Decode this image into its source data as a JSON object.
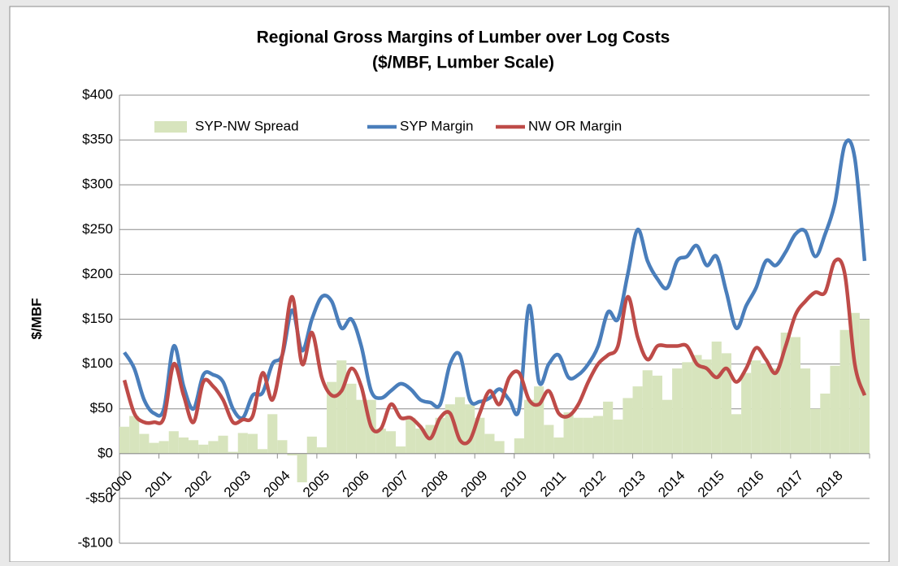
{
  "chart_data": {
    "type": "combo",
    "title": "Regional Gross Margins of Lumber over Log Costs",
    "subtitle": "($/MBF, Lumber Scale)",
    "y_label": "$/MBF",
    "categories": [
      "2000",
      null,
      null,
      null,
      "2001",
      null,
      null,
      null,
      "2002",
      null,
      null,
      null,
      "2003",
      null,
      null,
      null,
      "2004",
      null,
      null,
      null,
      "2005",
      null,
      null,
      null,
      "2006",
      null,
      null,
      null,
      "2007",
      null,
      null,
      null,
      "2008",
      null,
      null,
      null,
      "2009",
      null,
      null,
      null,
      "2010",
      null,
      null,
      null,
      "2011",
      null,
      null,
      null,
      "2012",
      null,
      null,
      null,
      "2013",
      null,
      null,
      null,
      "2014",
      null,
      null,
      null,
      "2015",
      null,
      null,
      null,
      "2016",
      null,
      null,
      null,
      "2017",
      null,
      null,
      null,
      "2018",
      null,
      null,
      null
    ],
    "series": [
      {
        "name": "SYP-NW Spread",
        "kind": "bar",
        "color": "#d7e4bd",
        "values": [
          30,
          42,
          22,
          12,
          14,
          25,
          18,
          15,
          10,
          14,
          20,
          2,
          23,
          22,
          5,
          44,
          15,
          -2,
          -32,
          19,
          7,
          80,
          104,
          78,
          60,
          60,
          28,
          25,
          8,
          40,
          28,
          32,
          40,
          55,
          63,
          55,
          40,
          22,
          14,
          0,
          17,
          60,
          75,
          32,
          18,
          46,
          40,
          40,
          42,
          58,
          38,
          62,
          75,
          93,
          87,
          60,
          95,
          102,
          110,
          105,
          125,
          112,
          44,
          90,
          104,
          100,
          95,
          135,
          130,
          95,
          50,
          67,
          98,
          138,
          157,
          150
        ]
      },
      {
        "name": "SYP Margin",
        "kind": "line",
        "color": "#4a7ebb",
        "values": [
          113,
          95,
          60,
          45,
          50,
          120,
          75,
          50,
          88,
          88,
          80,
          50,
          40,
          65,
          68,
          100,
          110,
          160,
          115,
          150,
          175,
          170,
          140,
          150,
          120,
          70,
          62,
          70,
          78,
          72,
          60,
          57,
          55,
          100,
          110,
          60,
          58,
          62,
          72,
          60,
          50,
          165,
          80,
          100,
          110,
          85,
          88,
          100,
          120,
          158,
          150,
          200,
          250,
          215,
          195,
          185,
          215,
          220,
          232,
          210,
          220,
          180,
          140,
          165,
          185,
          215,
          210,
          225,
          245,
          248,
          220,
          245,
          280,
          345,
          330,
          215
        ]
      },
      {
        "name": "NW OR Margin",
        "kind": "line",
        "color": "#be4b48",
        "values": [
          82,
          45,
          35,
          35,
          40,
          100,
          65,
          35,
          80,
          75,
          60,
          35,
          38,
          42,
          90,
          60,
          110,
          175,
          100,
          135,
          85,
          65,
          70,
          95,
          75,
          30,
          28,
          55,
          40,
          40,
          30,
          17,
          40,
          45,
          15,
          15,
          45,
          70,
          55,
          85,
          90,
          60,
          55,
          70,
          45,
          42,
          55,
          80,
          100,
          110,
          120,
          175,
          130,
          105,
          120,
          120,
          120,
          120,
          100,
          95,
          85,
          95,
          80,
          95,
          118,
          105,
          90,
          120,
          155,
          170,
          180,
          180,
          215,
          200,
          100,
          65
        ]
      }
    ],
    "ylim": [
      -100,
      400
    ],
    "yticks": [
      {
        "value": -100,
        "label": "-$100"
      },
      {
        "value": -50,
        "label": "-$50"
      },
      {
        "value": 0,
        "label": "$0"
      },
      {
        "value": 50,
        "label": "$50"
      },
      {
        "value": 100,
        "label": "$100"
      },
      {
        "value": 150,
        "label": "$150"
      },
      {
        "value": 200,
        "label": "$200"
      },
      {
        "value": 250,
        "label": "$250"
      },
      {
        "value": 300,
        "label": "$300"
      },
      {
        "value": 350,
        "label": "$350"
      },
      {
        "value": 400,
        "label": "$400"
      }
    ],
    "grid": true,
    "legend": "top"
  }
}
